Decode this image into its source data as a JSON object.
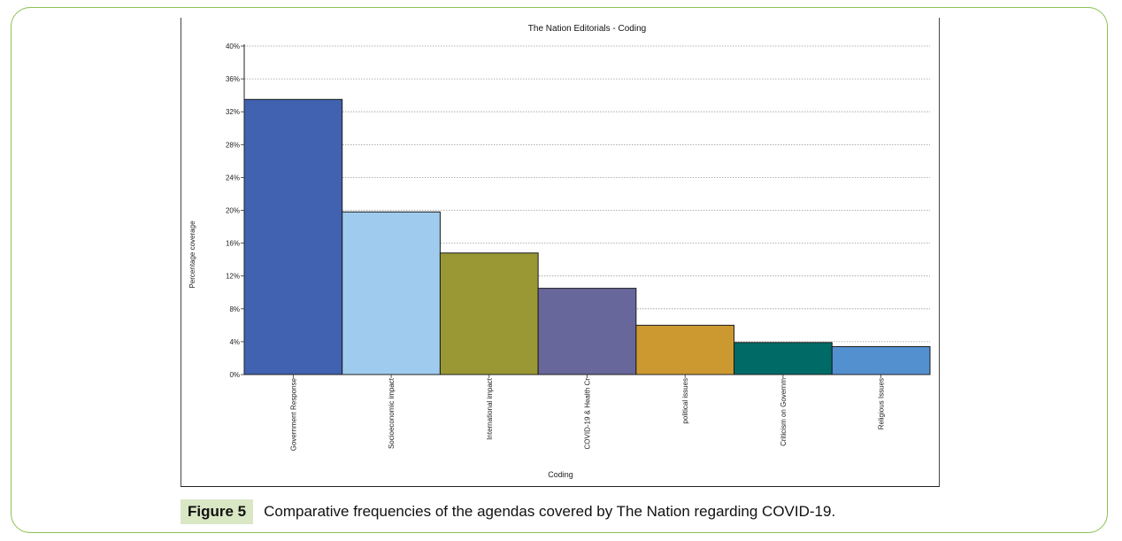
{
  "caption": {
    "label": "Figure 5",
    "text": "Comparative frequencies of the agendas covered by The Nation regarding COVID-19."
  },
  "chart_data": {
    "type": "bar",
    "title": "The Nation Editorials - Coding",
    "xlabel": "Coding",
    "ylabel": "Percentage coverage",
    "ylim": [
      0,
      40
    ],
    "yticks": [
      "0%",
      "4%",
      "8%",
      "12%",
      "16%",
      "20%",
      "24%",
      "28%",
      "32%",
      "36%",
      "40%"
    ],
    "grid": true,
    "categories": [
      "Government Response",
      "Socioeconomic impact",
      "International impact",
      "COVID-19 & Health Cr",
      "political issues",
      "Criticism on Governm",
      "Religious Issues"
    ],
    "values": [
      33.5,
      19.8,
      14.8,
      10.5,
      6.0,
      3.9,
      3.4
    ],
    "colors": [
      "#4062b0",
      "#9fcbee",
      "#999834",
      "#68679b",
      "#cc9930",
      "#006b66",
      "#5390d0"
    ]
  }
}
